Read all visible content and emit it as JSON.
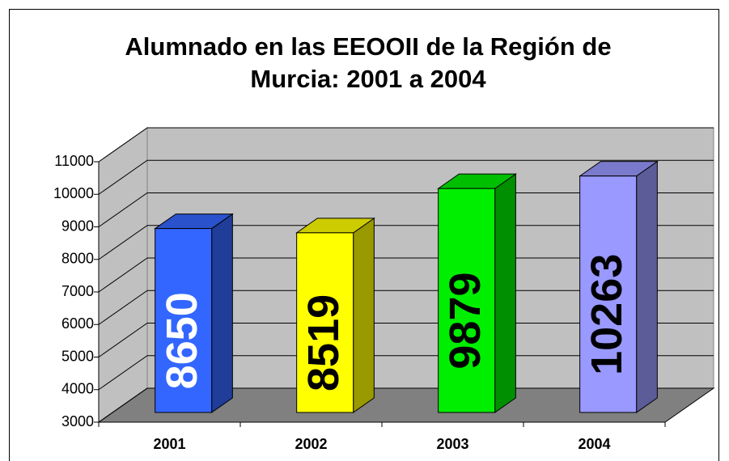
{
  "chart_data": {
    "type": "bar3d",
    "title": "Alumnado en las EEOOII de la Región de",
    "subtitle": "Murcia: 2001 a 2004",
    "categories": [
      "2001",
      "2002",
      "2003",
      "2004"
    ],
    "values": [
      8650,
      8519,
      9879,
      10263
    ],
    "colors": [
      "#3366ff",
      "#ffff00",
      "#00ee00",
      "#9999ff"
    ],
    "label_colors": [
      "#ffffff",
      "#000000",
      "#000000",
      "#000000"
    ],
    "ylim": [
      3000,
      11000
    ],
    "yticks": [
      3000,
      4000,
      5000,
      6000,
      7000,
      8000,
      9000,
      10000,
      11000
    ],
    "grid": true
  }
}
